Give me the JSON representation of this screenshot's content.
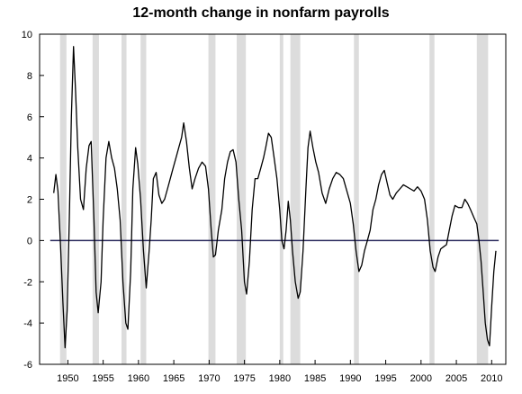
{
  "chart_data": {
    "type": "line",
    "title": "12-month change in nonfarm payrolls",
    "xlabel": "",
    "ylabel": "",
    "xlim": [
      1946,
      2012
    ],
    "ylim": [
      -6,
      10
    ],
    "y_ticks": [
      -6,
      -4,
      -2,
      0,
      2,
      4,
      6,
      8,
      10
    ],
    "x_ticks": [
      1950,
      1955,
      1960,
      1965,
      1970,
      1975,
      1980,
      1985,
      1990,
      1995,
      2000,
      2005,
      2010
    ],
    "grid": false,
    "legend": "none",
    "zero_line": 0,
    "recession_shading": [
      [
        1948.9,
        1949.8
      ],
      [
        1953.5,
        1954.4
      ],
      [
        1957.6,
        1958.3
      ],
      [
        1960.3,
        1961.1
      ],
      [
        1969.9,
        1970.9
      ],
      [
        1973.9,
        1975.2
      ],
      [
        1980.0,
        1980.5
      ],
      [
        1981.5,
        1982.9
      ],
      [
        1990.5,
        1991.2
      ],
      [
        2001.2,
        2001.9
      ],
      [
        2007.9,
        2009.5
      ]
    ],
    "series": [
      {
        "values": [
          [
            1948.0,
            2.3
          ],
          [
            1948.3,
            3.2
          ],
          [
            1948.6,
            2.4
          ],
          [
            1949.0,
            -0.5
          ],
          [
            1949.3,
            -3.0
          ],
          [
            1949.6,
            -5.2
          ],
          [
            1949.9,
            -3.4
          ],
          [
            1950.2,
            1.0
          ],
          [
            1950.5,
            6.0
          ],
          [
            1950.8,
            9.4
          ],
          [
            1951.1,
            7.2
          ],
          [
            1951.4,
            4.5
          ],
          [
            1951.8,
            2.0
          ],
          [
            1952.2,
            1.5
          ],
          [
            1952.6,
            3.5
          ],
          [
            1953.0,
            4.6
          ],
          [
            1953.3,
            4.8
          ],
          [
            1953.7,
            1.0
          ],
          [
            1954.0,
            -2.5
          ],
          [
            1954.3,
            -3.5
          ],
          [
            1954.7,
            -2.0
          ],
          [
            1955.0,
            1.0
          ],
          [
            1955.4,
            4.0
          ],
          [
            1955.8,
            4.8
          ],
          [
            1956.2,
            4.0
          ],
          [
            1956.6,
            3.5
          ],
          [
            1957.0,
            2.5
          ],
          [
            1957.4,
            1.0
          ],
          [
            1957.8,
            -2.0
          ],
          [
            1958.2,
            -4.0
          ],
          [
            1958.5,
            -4.3
          ],
          [
            1958.9,
            -1.5
          ],
          [
            1959.2,
            2.5
          ],
          [
            1959.6,
            4.5
          ],
          [
            1959.9,
            3.7
          ],
          [
            1960.3,
            2.0
          ],
          [
            1960.7,
            -0.5
          ],
          [
            1961.1,
            -2.3
          ],
          [
            1961.5,
            -0.5
          ],
          [
            1961.8,
            1.0
          ],
          [
            1962.1,
            3.0
          ],
          [
            1962.5,
            3.3
          ],
          [
            1962.9,
            2.2
          ],
          [
            1963.3,
            1.8
          ],
          [
            1963.7,
            2.0
          ],
          [
            1964.1,
            2.5
          ],
          [
            1964.5,
            3.0
          ],
          [
            1964.9,
            3.5
          ],
          [
            1965.3,
            4.0
          ],
          [
            1965.7,
            4.5
          ],
          [
            1966.1,
            5.0
          ],
          [
            1966.4,
            5.7
          ],
          [
            1966.8,
            4.8
          ],
          [
            1967.2,
            3.5
          ],
          [
            1967.6,
            2.5
          ],
          [
            1968.0,
            3.0
          ],
          [
            1968.5,
            3.5
          ],
          [
            1969.0,
            3.8
          ],
          [
            1969.5,
            3.6
          ],
          [
            1969.9,
            2.5
          ],
          [
            1970.3,
            0.5
          ],
          [
            1970.6,
            -0.8
          ],
          [
            1970.9,
            -0.7
          ],
          [
            1971.3,
            0.5
          ],
          [
            1971.8,
            1.5
          ],
          [
            1972.2,
            3.0
          ],
          [
            1972.6,
            3.8
          ],
          [
            1973.0,
            4.3
          ],
          [
            1973.4,
            4.4
          ],
          [
            1973.8,
            3.8
          ],
          [
            1974.2,
            2.0
          ],
          [
            1974.6,
            0.5
          ],
          [
            1975.0,
            -2.0
          ],
          [
            1975.3,
            -2.6
          ],
          [
            1975.7,
            -1.0
          ],
          [
            1976.1,
            1.5
          ],
          [
            1976.5,
            3.0
          ],
          [
            1976.9,
            3.0
          ],
          [
            1977.3,
            3.5
          ],
          [
            1977.7,
            4.0
          ],
          [
            1978.0,
            4.5
          ],
          [
            1978.4,
            5.2
          ],
          [
            1978.8,
            5.0
          ],
          [
            1979.2,
            4.0
          ],
          [
            1979.6,
            3.0
          ],
          [
            1980.0,
            1.5
          ],
          [
            1980.3,
            0.0
          ],
          [
            1980.6,
            -0.4
          ],
          [
            1980.9,
            0.5
          ],
          [
            1981.2,
            1.9
          ],
          [
            1981.5,
            1.0
          ],
          [
            1981.8,
            -0.5
          ],
          [
            1982.2,
            -2.0
          ],
          [
            1982.6,
            -2.8
          ],
          [
            1982.9,
            -2.5
          ],
          [
            1983.3,
            -0.5
          ],
          [
            1983.7,
            2.5
          ],
          [
            1984.0,
            4.5
          ],
          [
            1984.3,
            5.3
          ],
          [
            1984.7,
            4.5
          ],
          [
            1985.1,
            3.8
          ],
          [
            1985.5,
            3.3
          ],
          [
            1986.0,
            2.3
          ],
          [
            1986.5,
            1.8
          ],
          [
            1987.0,
            2.5
          ],
          [
            1987.5,
            3.0
          ],
          [
            1988.0,
            3.3
          ],
          [
            1988.5,
            3.2
          ],
          [
            1989.0,
            3.0
          ],
          [
            1989.5,
            2.4
          ],
          [
            1990.0,
            1.8
          ],
          [
            1990.4,
            0.8
          ],
          [
            1990.8,
            -0.5
          ],
          [
            1991.2,
            -1.5
          ],
          [
            1991.6,
            -1.2
          ],
          [
            1992.0,
            -0.5
          ],
          [
            1992.4,
            0.0
          ],
          [
            1992.8,
            0.5
          ],
          [
            1993.2,
            1.5
          ],
          [
            1993.6,
            2.0
          ],
          [
            1994.0,
            2.7
          ],
          [
            1994.4,
            3.2
          ],
          [
            1994.8,
            3.4
          ],
          [
            1995.2,
            2.8
          ],
          [
            1995.6,
            2.2
          ],
          [
            1996.0,
            2.0
          ],
          [
            1996.5,
            2.3
          ],
          [
            1997.0,
            2.5
          ],
          [
            1997.5,
            2.7
          ],
          [
            1998.0,
            2.6
          ],
          [
            1998.5,
            2.5
          ],
          [
            1999.0,
            2.4
          ],
          [
            1999.5,
            2.6
          ],
          [
            2000.0,
            2.4
          ],
          [
            2000.5,
            2.0
          ],
          [
            2000.9,
            1.0
          ],
          [
            2001.3,
            -0.5
          ],
          [
            2001.7,
            -1.3
          ],
          [
            2002.0,
            -1.5
          ],
          [
            2002.4,
            -0.8
          ],
          [
            2002.8,
            -0.4
          ],
          [
            2003.2,
            -0.3
          ],
          [
            2003.6,
            -0.2
          ],
          [
            2004.0,
            0.5
          ],
          [
            2004.4,
            1.2
          ],
          [
            2004.8,
            1.7
          ],
          [
            2005.3,
            1.6
          ],
          [
            2005.8,
            1.6
          ],
          [
            2006.2,
            2.0
          ],
          [
            2006.6,
            1.8
          ],
          [
            2007.0,
            1.5
          ],
          [
            2007.5,
            1.1
          ],
          [
            2007.9,
            0.8
          ],
          [
            2008.2,
            0.0
          ],
          [
            2008.5,
            -1.0
          ],
          [
            2008.8,
            -2.5
          ],
          [
            2009.1,
            -4.0
          ],
          [
            2009.4,
            -4.8
          ],
          [
            2009.7,
            -5.1
          ],
          [
            2010.0,
            -3.2
          ],
          [
            2010.3,
            -1.5
          ],
          [
            2010.6,
            -0.5
          ]
        ]
      }
    ]
  },
  "colors": {
    "line": "#000000",
    "zero_line": "#2b2b5e",
    "recession": "#dcdcdc",
    "axis": "#000000"
  }
}
